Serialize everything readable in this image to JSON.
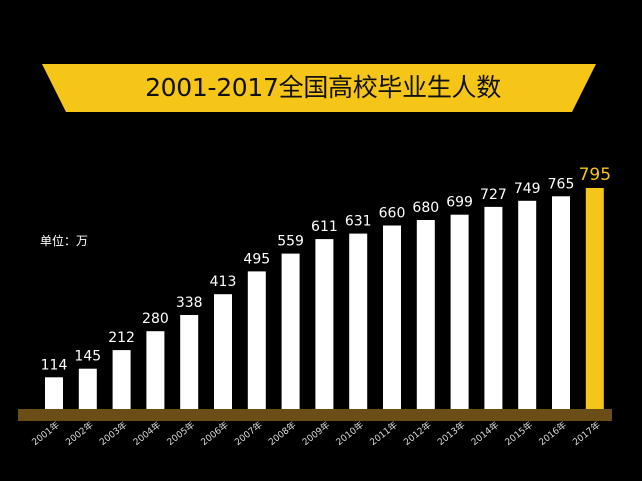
{
  "title": "2001-2017全国高校毕业生人数",
  "unit_label": "单位：万",
  "colors": {
    "background": "#000000",
    "banner": "#f5c518",
    "bar": "#ffffff",
    "bar_highlight": "#f5c518",
    "baseline": "#6b4d17",
    "value_text": "#ffffff",
    "highlight_text": "#f5c518"
  },
  "chart_data": {
    "type": "bar",
    "title": "2001-2017全国高校毕业生人数",
    "unit": "单位：万",
    "categories": [
      "2001年",
      "2002年",
      "2003年",
      "2004年",
      "2005年",
      "2006年",
      "2007年",
      "2008年",
      "2009年",
      "2010年",
      "2011年",
      "2012年",
      "2013年",
      "2014年",
      "2015年",
      "2016年",
      "2017年"
    ],
    "values": [
      114,
      145,
      212,
      280,
      338,
      413,
      495,
      559,
      611,
      631,
      660,
      680,
      699,
      727,
      749,
      765,
      795
    ],
    "highlight_category": "2017年",
    "ylim": [
      0,
      820
    ],
    "grid": false,
    "legend": "none"
  }
}
